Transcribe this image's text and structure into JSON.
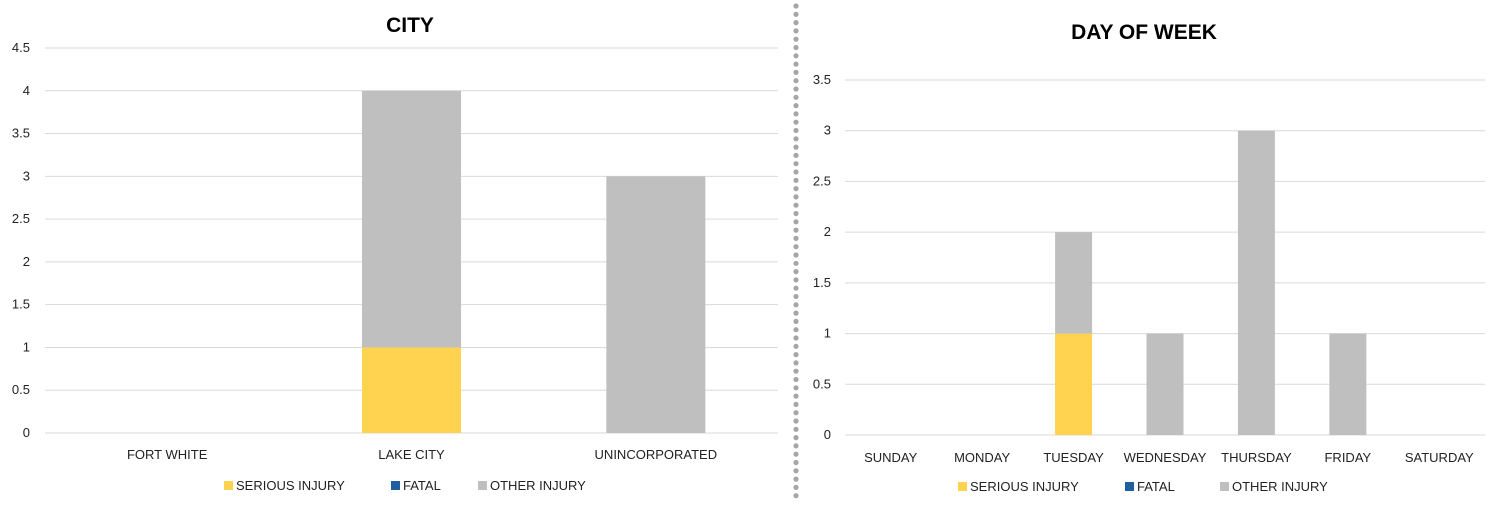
{
  "colors": {
    "serious": "#FFD34F",
    "fatal": "#1F5F9F",
    "other": "#BFBFBF",
    "grid": "#D9D9D9",
    "divider": "#A6A6A6"
  },
  "chart_data": [
    {
      "type": "bar",
      "stacked": true,
      "title": "CITY",
      "categories": [
        "FORT WHITE",
        "LAKE CITY",
        "UNINCORPORATED"
      ],
      "series": [
        {
          "name": "SERIOUS INJURY",
          "color_key": "serious",
          "values": [
            0,
            1,
            0
          ]
        },
        {
          "name": "FATAL",
          "color_key": "fatal",
          "values": [
            0,
            0,
            0
          ]
        },
        {
          "name": "OTHER INJURY",
          "color_key": "other",
          "values": [
            0,
            3,
            3
          ]
        }
      ],
      "yticks": [
        "0",
        "0.5",
        "1",
        "1.5",
        "2",
        "2.5",
        "3",
        "3.5",
        "4",
        "4.5"
      ],
      "ylim": [
        0,
        4.5
      ],
      "grid": true,
      "legend": "bottom"
    },
    {
      "type": "bar",
      "stacked": true,
      "title": "DAY OF WEEK",
      "categories": [
        "SUNDAY",
        "MONDAY",
        "TUESDAY",
        "WEDNESDAY",
        "THURSDAY",
        "FRIDAY",
        "SATURDAY"
      ],
      "series": [
        {
          "name": "SERIOUS INJURY",
          "color_key": "serious",
          "values": [
            0,
            0,
            1,
            0,
            0,
            0,
            0
          ]
        },
        {
          "name": "FATAL",
          "color_key": "fatal",
          "values": [
            0,
            0,
            0,
            0,
            0,
            0,
            0
          ]
        },
        {
          "name": "OTHER INJURY",
          "color_key": "other",
          "values": [
            0,
            0,
            1,
            1,
            3,
            1,
            0
          ]
        }
      ],
      "yticks": [
        "0",
        "0.5",
        "1",
        "1.5",
        "2",
        "2.5",
        "3",
        "3.5"
      ],
      "ylim": [
        0,
        3.5
      ],
      "grid": true,
      "legend": "bottom"
    }
  ]
}
